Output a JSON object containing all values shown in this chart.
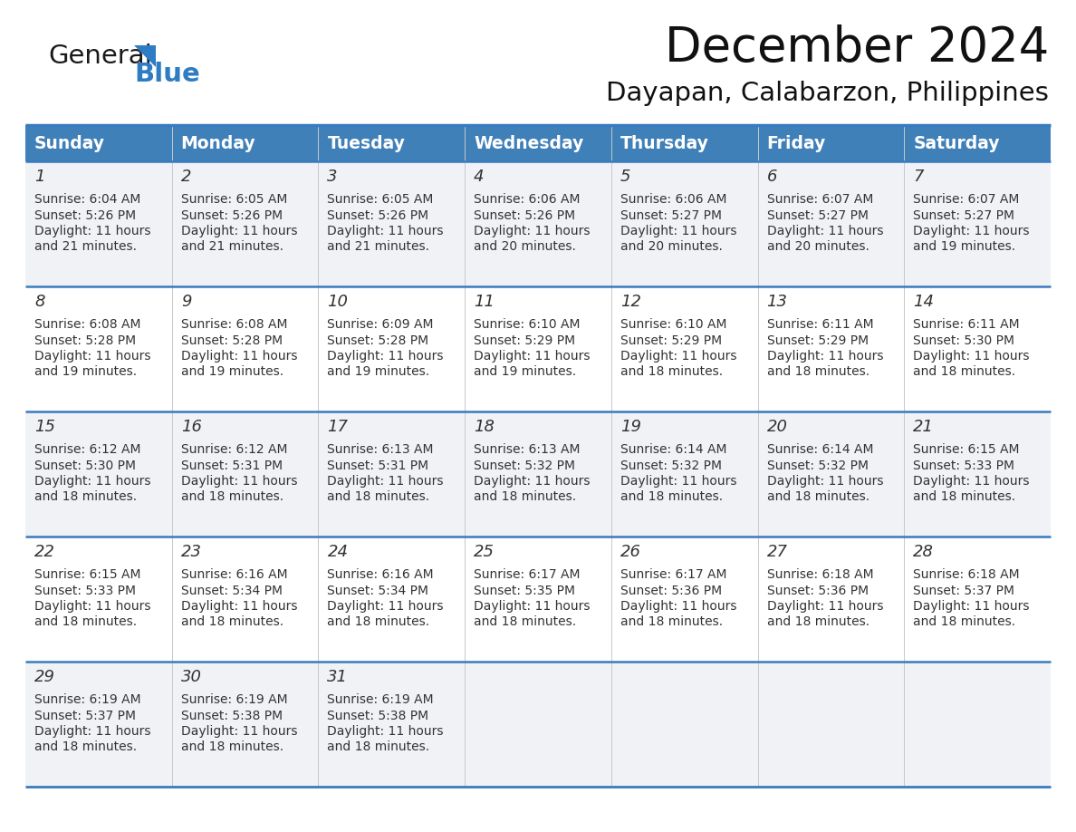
{
  "title": "December 2024",
  "subtitle": "Dayapan, Calabarzon, Philippines",
  "header_color": "#4080b8",
  "header_text_color": "#ffffff",
  "row_bg_odd": "#f0f2f5",
  "row_bg_even": "#ffffff",
  "border_color": "#3a7abf",
  "text_color": "#333333",
  "logo_color1": "#1a1a1a",
  "logo_color2": "#2d7cc4",
  "triangle_color": "#2d7cc4",
  "days_of_week": [
    "Sunday",
    "Monday",
    "Tuesday",
    "Wednesday",
    "Thursday",
    "Friday",
    "Saturday"
  ],
  "weeks": [
    [
      {
        "day": 1,
        "sunrise": "6:04 AM",
        "sunset": "5:26 PM",
        "daylight_h": "11 hours",
        "daylight_m": "and 21 minutes."
      },
      {
        "day": 2,
        "sunrise": "6:05 AM",
        "sunset": "5:26 PM",
        "daylight_h": "11 hours",
        "daylight_m": "and 21 minutes."
      },
      {
        "day": 3,
        "sunrise": "6:05 AM",
        "sunset": "5:26 PM",
        "daylight_h": "11 hours",
        "daylight_m": "and 21 minutes."
      },
      {
        "day": 4,
        "sunrise": "6:06 AM",
        "sunset": "5:26 PM",
        "daylight_h": "11 hours",
        "daylight_m": "and 20 minutes."
      },
      {
        "day": 5,
        "sunrise": "6:06 AM",
        "sunset": "5:27 PM",
        "daylight_h": "11 hours",
        "daylight_m": "and 20 minutes."
      },
      {
        "day": 6,
        "sunrise": "6:07 AM",
        "sunset": "5:27 PM",
        "daylight_h": "11 hours",
        "daylight_m": "and 20 minutes."
      },
      {
        "day": 7,
        "sunrise": "6:07 AM",
        "sunset": "5:27 PM",
        "daylight_h": "11 hours",
        "daylight_m": "and 19 minutes."
      }
    ],
    [
      {
        "day": 8,
        "sunrise": "6:08 AM",
        "sunset": "5:28 PM",
        "daylight_h": "11 hours",
        "daylight_m": "and 19 minutes."
      },
      {
        "day": 9,
        "sunrise": "6:08 AM",
        "sunset": "5:28 PM",
        "daylight_h": "11 hours",
        "daylight_m": "and 19 minutes."
      },
      {
        "day": 10,
        "sunrise": "6:09 AM",
        "sunset": "5:28 PM",
        "daylight_h": "11 hours",
        "daylight_m": "and 19 minutes."
      },
      {
        "day": 11,
        "sunrise": "6:10 AM",
        "sunset": "5:29 PM",
        "daylight_h": "11 hours",
        "daylight_m": "and 19 minutes."
      },
      {
        "day": 12,
        "sunrise": "6:10 AM",
        "sunset": "5:29 PM",
        "daylight_h": "11 hours",
        "daylight_m": "and 18 minutes."
      },
      {
        "day": 13,
        "sunrise": "6:11 AM",
        "sunset": "5:29 PM",
        "daylight_h": "11 hours",
        "daylight_m": "and 18 minutes."
      },
      {
        "day": 14,
        "sunrise": "6:11 AM",
        "sunset": "5:30 PM",
        "daylight_h": "11 hours",
        "daylight_m": "and 18 minutes."
      }
    ],
    [
      {
        "day": 15,
        "sunrise": "6:12 AM",
        "sunset": "5:30 PM",
        "daylight_h": "11 hours",
        "daylight_m": "and 18 minutes."
      },
      {
        "day": 16,
        "sunrise": "6:12 AM",
        "sunset": "5:31 PM",
        "daylight_h": "11 hours",
        "daylight_m": "and 18 minutes."
      },
      {
        "day": 17,
        "sunrise": "6:13 AM",
        "sunset": "5:31 PM",
        "daylight_h": "11 hours",
        "daylight_m": "and 18 minutes."
      },
      {
        "day": 18,
        "sunrise": "6:13 AM",
        "sunset": "5:32 PM",
        "daylight_h": "11 hours",
        "daylight_m": "and 18 minutes."
      },
      {
        "day": 19,
        "sunrise": "6:14 AM",
        "sunset": "5:32 PM",
        "daylight_h": "11 hours",
        "daylight_m": "and 18 minutes."
      },
      {
        "day": 20,
        "sunrise": "6:14 AM",
        "sunset": "5:32 PM",
        "daylight_h": "11 hours",
        "daylight_m": "and 18 minutes."
      },
      {
        "day": 21,
        "sunrise": "6:15 AM",
        "sunset": "5:33 PM",
        "daylight_h": "11 hours",
        "daylight_m": "and 18 minutes."
      }
    ],
    [
      {
        "day": 22,
        "sunrise": "6:15 AM",
        "sunset": "5:33 PM",
        "daylight_h": "11 hours",
        "daylight_m": "and 18 minutes."
      },
      {
        "day": 23,
        "sunrise": "6:16 AM",
        "sunset": "5:34 PM",
        "daylight_h": "11 hours",
        "daylight_m": "and 18 minutes."
      },
      {
        "day": 24,
        "sunrise": "6:16 AM",
        "sunset": "5:34 PM",
        "daylight_h": "11 hours",
        "daylight_m": "and 18 minutes."
      },
      {
        "day": 25,
        "sunrise": "6:17 AM",
        "sunset": "5:35 PM",
        "daylight_h": "11 hours",
        "daylight_m": "and 18 minutes."
      },
      {
        "day": 26,
        "sunrise": "6:17 AM",
        "sunset": "5:36 PM",
        "daylight_h": "11 hours",
        "daylight_m": "and 18 minutes."
      },
      {
        "day": 27,
        "sunrise": "6:18 AM",
        "sunset": "5:36 PM",
        "daylight_h": "11 hours",
        "daylight_m": "and 18 minutes."
      },
      {
        "day": 28,
        "sunrise": "6:18 AM",
        "sunset": "5:37 PM",
        "daylight_h": "11 hours",
        "daylight_m": "and 18 minutes."
      }
    ],
    [
      {
        "day": 29,
        "sunrise": "6:19 AM",
        "sunset": "5:37 PM",
        "daylight_h": "11 hours",
        "daylight_m": "and 18 minutes."
      },
      {
        "day": 30,
        "sunrise": "6:19 AM",
        "sunset": "5:38 PM",
        "daylight_h": "11 hours",
        "daylight_m": "and 18 minutes."
      },
      {
        "day": 31,
        "sunrise": "6:19 AM",
        "sunset": "5:38 PM",
        "daylight_h": "11 hours",
        "daylight_m": "and 18 minutes."
      },
      null,
      null,
      null,
      null
    ]
  ]
}
